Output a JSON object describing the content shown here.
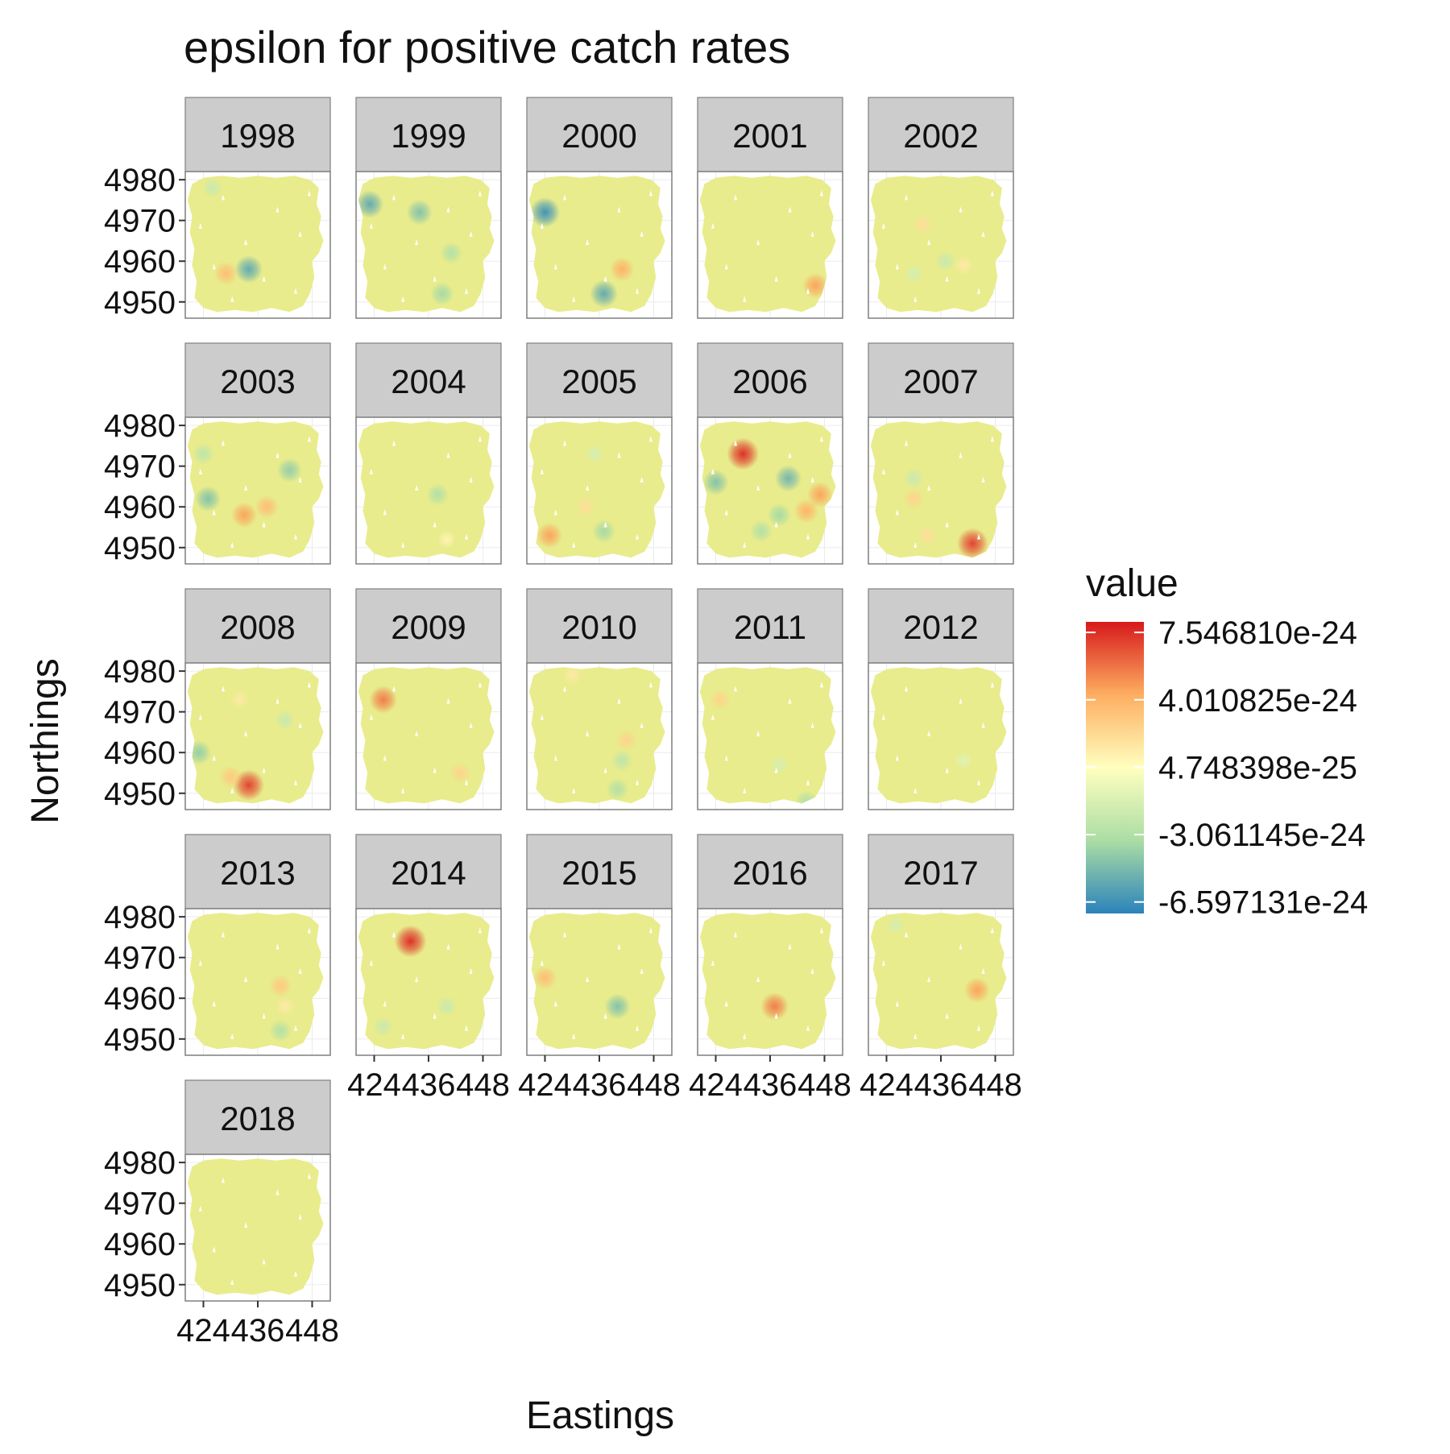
{
  "chart_data": {
    "type": "heatmap",
    "title": "epsilon for positive catch rates",
    "xlabel": "Eastings",
    "ylabel": "Northings",
    "facet_labels": [
      "1998",
      "1999",
      "2000",
      "2001",
      "2002",
      "2003",
      "2004",
      "2005",
      "2006",
      "2007",
      "2008",
      "2009",
      "2010",
      "2011",
      "2012",
      "2013",
      "2014",
      "2015",
      "2016",
      "2017",
      "2018"
    ],
    "x_ticks": [
      "424",
      "436",
      "448"
    ],
    "x_tick_values": [
      424,
      436,
      448
    ],
    "y_ticks": [
      "4980",
      "4970",
      "4960",
      "4950"
    ],
    "y_tick_values": [
      4980,
      4970,
      4960,
      4950
    ],
    "xlim": [
      420,
      452
    ],
    "ylim": [
      4946,
      4982
    ],
    "grid": true,
    "legend": {
      "title": "value",
      "placement": "right",
      "labels": [
        "7.546810e-24",
        "4.010825e-24",
        "4.748398e-25",
        "-3.061145e-24",
        "-6.597131e-24"
      ],
      "values": [
        7.54681e-24,
        4.010825e-24,
        4.748398e-25,
        -3.061145e-24,
        -6.597131e-24
      ],
      "range": [
        -7.2e-24,
        8.1e-24
      ],
      "colormap": [
        "#2b83ba",
        "#abdda4",
        "#ffffbf",
        "#fdae61",
        "#d7191c"
      ]
    },
    "base_color": "#e8ec8c",
    "hotspots": [
      {
        "year": "1998",
        "x": 434,
        "y": 4958,
        "value": -5.5e-24
      },
      {
        "year": "1998",
        "x": 429,
        "y": 4957,
        "value": 3.5e-24
      },
      {
        "year": "1998",
        "x": 426,
        "y": 4978,
        "value": -2e-24
      },
      {
        "year": "1999",
        "x": 423,
        "y": 4974,
        "value": -5.5e-24
      },
      {
        "year": "1999",
        "x": 434,
        "y": 4972,
        "value": -4.5e-24
      },
      {
        "year": "1999",
        "x": 441,
        "y": 4962,
        "value": -3e-24
      },
      {
        "year": "1999",
        "x": 439,
        "y": 4952,
        "value": -3.5e-24
      },
      {
        "year": "2000",
        "x": 424,
        "y": 4972,
        "value": -6.5e-24
      },
      {
        "year": "2000",
        "x": 437,
        "y": 4952,
        "value": -5.5e-24
      },
      {
        "year": "2000",
        "x": 441,
        "y": 4958,
        "value": 4e-24
      },
      {
        "year": "2001",
        "x": 446,
        "y": 4954,
        "value": 4.5e-24
      },
      {
        "year": "2002",
        "x": 432,
        "y": 4969,
        "value": 2e-24
      },
      {
        "year": "2002",
        "x": 437,
        "y": 4960,
        "value": -2e-24
      },
      {
        "year": "2002",
        "x": 430,
        "y": 4957,
        "value": -1.5e-24
      },
      {
        "year": "2002",
        "x": 441,
        "y": 4959,
        "value": 1.5e-24
      },
      {
        "year": "2003",
        "x": 424,
        "y": 4973,
        "value": -2.5e-24
      },
      {
        "year": "2003",
        "x": 425,
        "y": 4962,
        "value": -4.5e-24
      },
      {
        "year": "2003",
        "x": 443,
        "y": 4969,
        "value": -4e-24
      },
      {
        "year": "2003",
        "x": 438,
        "y": 4960,
        "value": 3.5e-24
      },
      {
        "year": "2003",
        "x": 433,
        "y": 4958,
        "value": 4.5e-24
      },
      {
        "year": "2004",
        "x": 438,
        "y": 4963,
        "value": -3e-24
      },
      {
        "year": "2004",
        "x": 440,
        "y": 4952,
        "value": 1e-24
      },
      {
        "year": "2005",
        "x": 425,
        "y": 4953,
        "value": 4.5e-24
      },
      {
        "year": "2005",
        "x": 433,
        "y": 4960,
        "value": 2e-24
      },
      {
        "year": "2005",
        "x": 437,
        "y": 4954,
        "value": -3.5e-24
      },
      {
        "year": "2005",
        "x": 435,
        "y": 4973,
        "value": -1.5e-24
      },
      {
        "year": "2006",
        "x": 430,
        "y": 4973,
        "value": 7.5e-24
      },
      {
        "year": "2006",
        "x": 424,
        "y": 4966,
        "value": -4.5e-24
      },
      {
        "year": "2006",
        "x": 440,
        "y": 4967,
        "value": -5e-24
      },
      {
        "year": "2006",
        "x": 438,
        "y": 4958,
        "value": -3.5e-24
      },
      {
        "year": "2006",
        "x": 444,
        "y": 4959,
        "value": 4e-24
      },
      {
        "year": "2006",
        "x": 434,
        "y": 4954,
        "value": -3e-24
      },
      {
        "year": "2006",
        "x": 447,
        "y": 4963,
        "value": 4.5e-24
      },
      {
        "year": "2007",
        "x": 443,
        "y": 4951,
        "value": 7e-24
      },
      {
        "year": "2007",
        "x": 433,
        "y": 4953,
        "value": 2e-24
      },
      {
        "year": "2007",
        "x": 430,
        "y": 4962,
        "value": 2.5e-24
      },
      {
        "year": "2007",
        "x": 430,
        "y": 4967,
        "value": -2e-24
      },
      {
        "year": "2008",
        "x": 434,
        "y": 4952,
        "value": 7e-24
      },
      {
        "year": "2008",
        "x": 430,
        "y": 4954,
        "value": 3e-24
      },
      {
        "year": "2008",
        "x": 423,
        "y": 4960,
        "value": -4e-24
      },
      {
        "year": "2008",
        "x": 442,
        "y": 4968,
        "value": -2e-24
      },
      {
        "year": "2008",
        "x": 432,
        "y": 4973,
        "value": 1.5e-24
      },
      {
        "year": "2009",
        "x": 426,
        "y": 4973,
        "value": 5.5e-24
      },
      {
        "year": "2009",
        "x": 443,
        "y": 4955,
        "value": 2.5e-24
      },
      {
        "year": "2010",
        "x": 430,
        "y": 4979,
        "value": 1.5e-24
      },
      {
        "year": "2010",
        "x": 442,
        "y": 4963,
        "value": 2.5e-24
      },
      {
        "year": "2010",
        "x": 441,
        "y": 4958,
        "value": -2.5e-24
      },
      {
        "year": "2010",
        "x": 440,
        "y": 4951,
        "value": -3e-24
      },
      {
        "year": "2011",
        "x": 425,
        "y": 4973,
        "value": 2.5e-24
      },
      {
        "year": "2011",
        "x": 444,
        "y": 4948,
        "value": -3e-24
      },
      {
        "year": "2011",
        "x": 438,
        "y": 4957,
        "value": -1.5e-24
      },
      {
        "year": "2012",
        "x": 441,
        "y": 4958,
        "value": -1e-24
      },
      {
        "year": "2013",
        "x": 441,
        "y": 4963,
        "value": 3e-24
      },
      {
        "year": "2013",
        "x": 441,
        "y": 4952,
        "value": -3e-24
      },
      {
        "year": "2013",
        "x": 442,
        "y": 4958,
        "value": 1.5e-24
      },
      {
        "year": "2014",
        "x": 432,
        "y": 4974,
        "value": 7.5e-24
      },
      {
        "year": "2014",
        "x": 440,
        "y": 4958,
        "value": -2e-24
      },
      {
        "year": "2014",
        "x": 426,
        "y": 4953,
        "value": -2e-24
      },
      {
        "year": "2015",
        "x": 424,
        "y": 4965,
        "value": 3.5e-24
      },
      {
        "year": "2015",
        "x": 440,
        "y": 4958,
        "value": -4.5e-24
      },
      {
        "year": "2016",
        "x": 437,
        "y": 4958,
        "value": 5.5e-24
      },
      {
        "year": "2017",
        "x": 444,
        "y": 4962,
        "value": 4.5e-24
      },
      {
        "year": "2017",
        "x": 426,
        "y": 4978,
        "value": -1.5e-24
      }
    ]
  }
}
